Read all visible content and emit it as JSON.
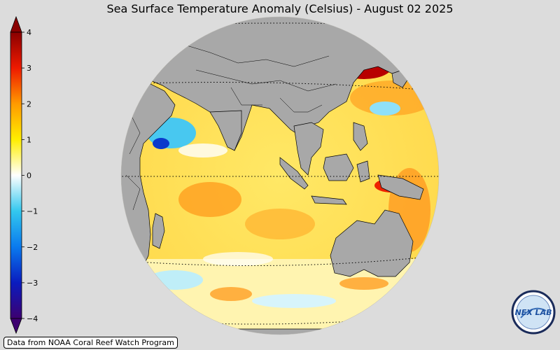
{
  "title": "Sea Surface Temperature Anomaly (Celsius) - August 02 2025",
  "colorbar": {
    "ticks": [
      "4",
      "3",
      "2",
      "1",
      "0",
      "−1",
      "−2",
      "−3",
      "−4"
    ],
    "min": -4,
    "max": 4,
    "colors": [
      "#3d0070",
      "#0a1cbf",
      "#0a7aee",
      "#33c8ee",
      "#ffffff",
      "#ffee00",
      "#ff9a00",
      "#ee1a00",
      "#8a0000"
    ]
  },
  "credit": "Data from NOAA Coral Reef Watch Program",
  "logo": {
    "text": "NEX LAB"
  },
  "colors": {
    "background": "#dcdcdc",
    "land": "#a8a8a8",
    "ocean_warm": "#ffe040",
    "ocean_hot": "#ff9a00"
  }
}
